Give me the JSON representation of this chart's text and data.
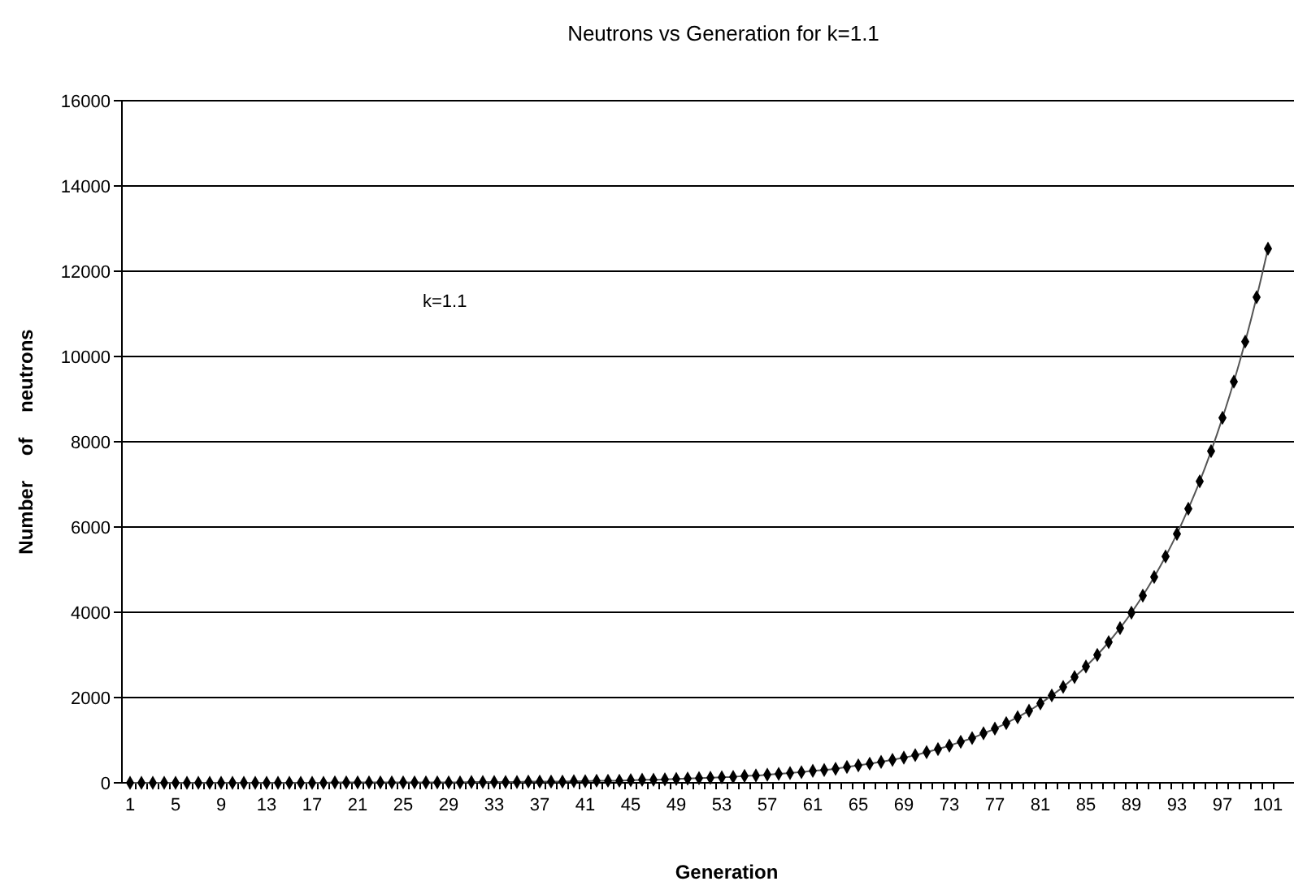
{
  "chart_data": {
    "type": "line",
    "title": "Neutrons vs Generation for k=1.1",
    "xlabel": "Generation",
    "ylabel": "Number of neutrons",
    "annotations": [
      "k=1.1"
    ],
    "categories": [
      "1",
      null,
      null,
      null,
      "5",
      null,
      null,
      null,
      "9",
      null,
      null,
      null,
      "13",
      null,
      null,
      null,
      "17",
      null,
      null,
      null,
      "21",
      null,
      null,
      null,
      "25",
      null,
      null,
      null,
      "29",
      null,
      null,
      null,
      "33",
      null,
      null,
      null,
      "37",
      null,
      null,
      null,
      "41",
      null,
      null,
      null,
      "45",
      null,
      null,
      null,
      "49",
      null,
      null,
      null,
      "53",
      null,
      null,
      null,
      "57",
      null,
      null,
      null,
      "61",
      null,
      null,
      null,
      "65",
      null,
      null,
      null,
      "69",
      null,
      null,
      null,
      "73",
      null,
      null,
      null,
      "77",
      null,
      null,
      null,
      "81",
      null,
      null,
      null,
      "85",
      null,
      null,
      null,
      "89",
      null,
      null,
      null,
      "93",
      null,
      null,
      null,
      "97",
      null,
      null,
      null,
      "101"
    ],
    "series": [
      {
        "color": "#000000",
        "values": [
          0,
          0,
          0,
          0,
          0,
          0,
          0,
          0,
          0,
          0,
          0,
          0,
          0,
          0,
          0,
          0,
          0,
          0,
          10,
          10,
          10,
          10,
          10,
          10,
          10,
          10,
          10,
          10,
          10,
          10,
          20,
          20,
          20,
          20,
          20,
          30,
          30,
          30,
          30,
          40,
          40,
          50,
          50,
          50,
          60,
          70,
          70,
          80,
          90,
          100,
          110,
          120,
          130,
          140,
          160,
          170,
          190,
          210,
          230,
          250,
          280,
          300,
          330,
          370,
          410,
          450,
          490,
          540,
          590,
          650,
          720,
          790,
          870,
          960,
          1050,
          1160,
          1270,
          1400,
          1540,
          1690,
          1860,
          2050,
          2250,
          2480,
          2730,
          3000,
          3300,
          3630,
          3990,
          4390,
          4830,
          5310,
          5840,
          6430,
          7070,
          7780,
          8560,
          9410,
          10350,
          11390,
          12530
        ]
      }
    ],
    "ylim": [
      0,
      16000
    ],
    "yticks": [
      0,
      2000,
      4000,
      6000,
      8000,
      10000,
      12000,
      14000,
      16000
    ],
    "grid": "y",
    "marker": "diamond",
    "line_style": "solid"
  }
}
